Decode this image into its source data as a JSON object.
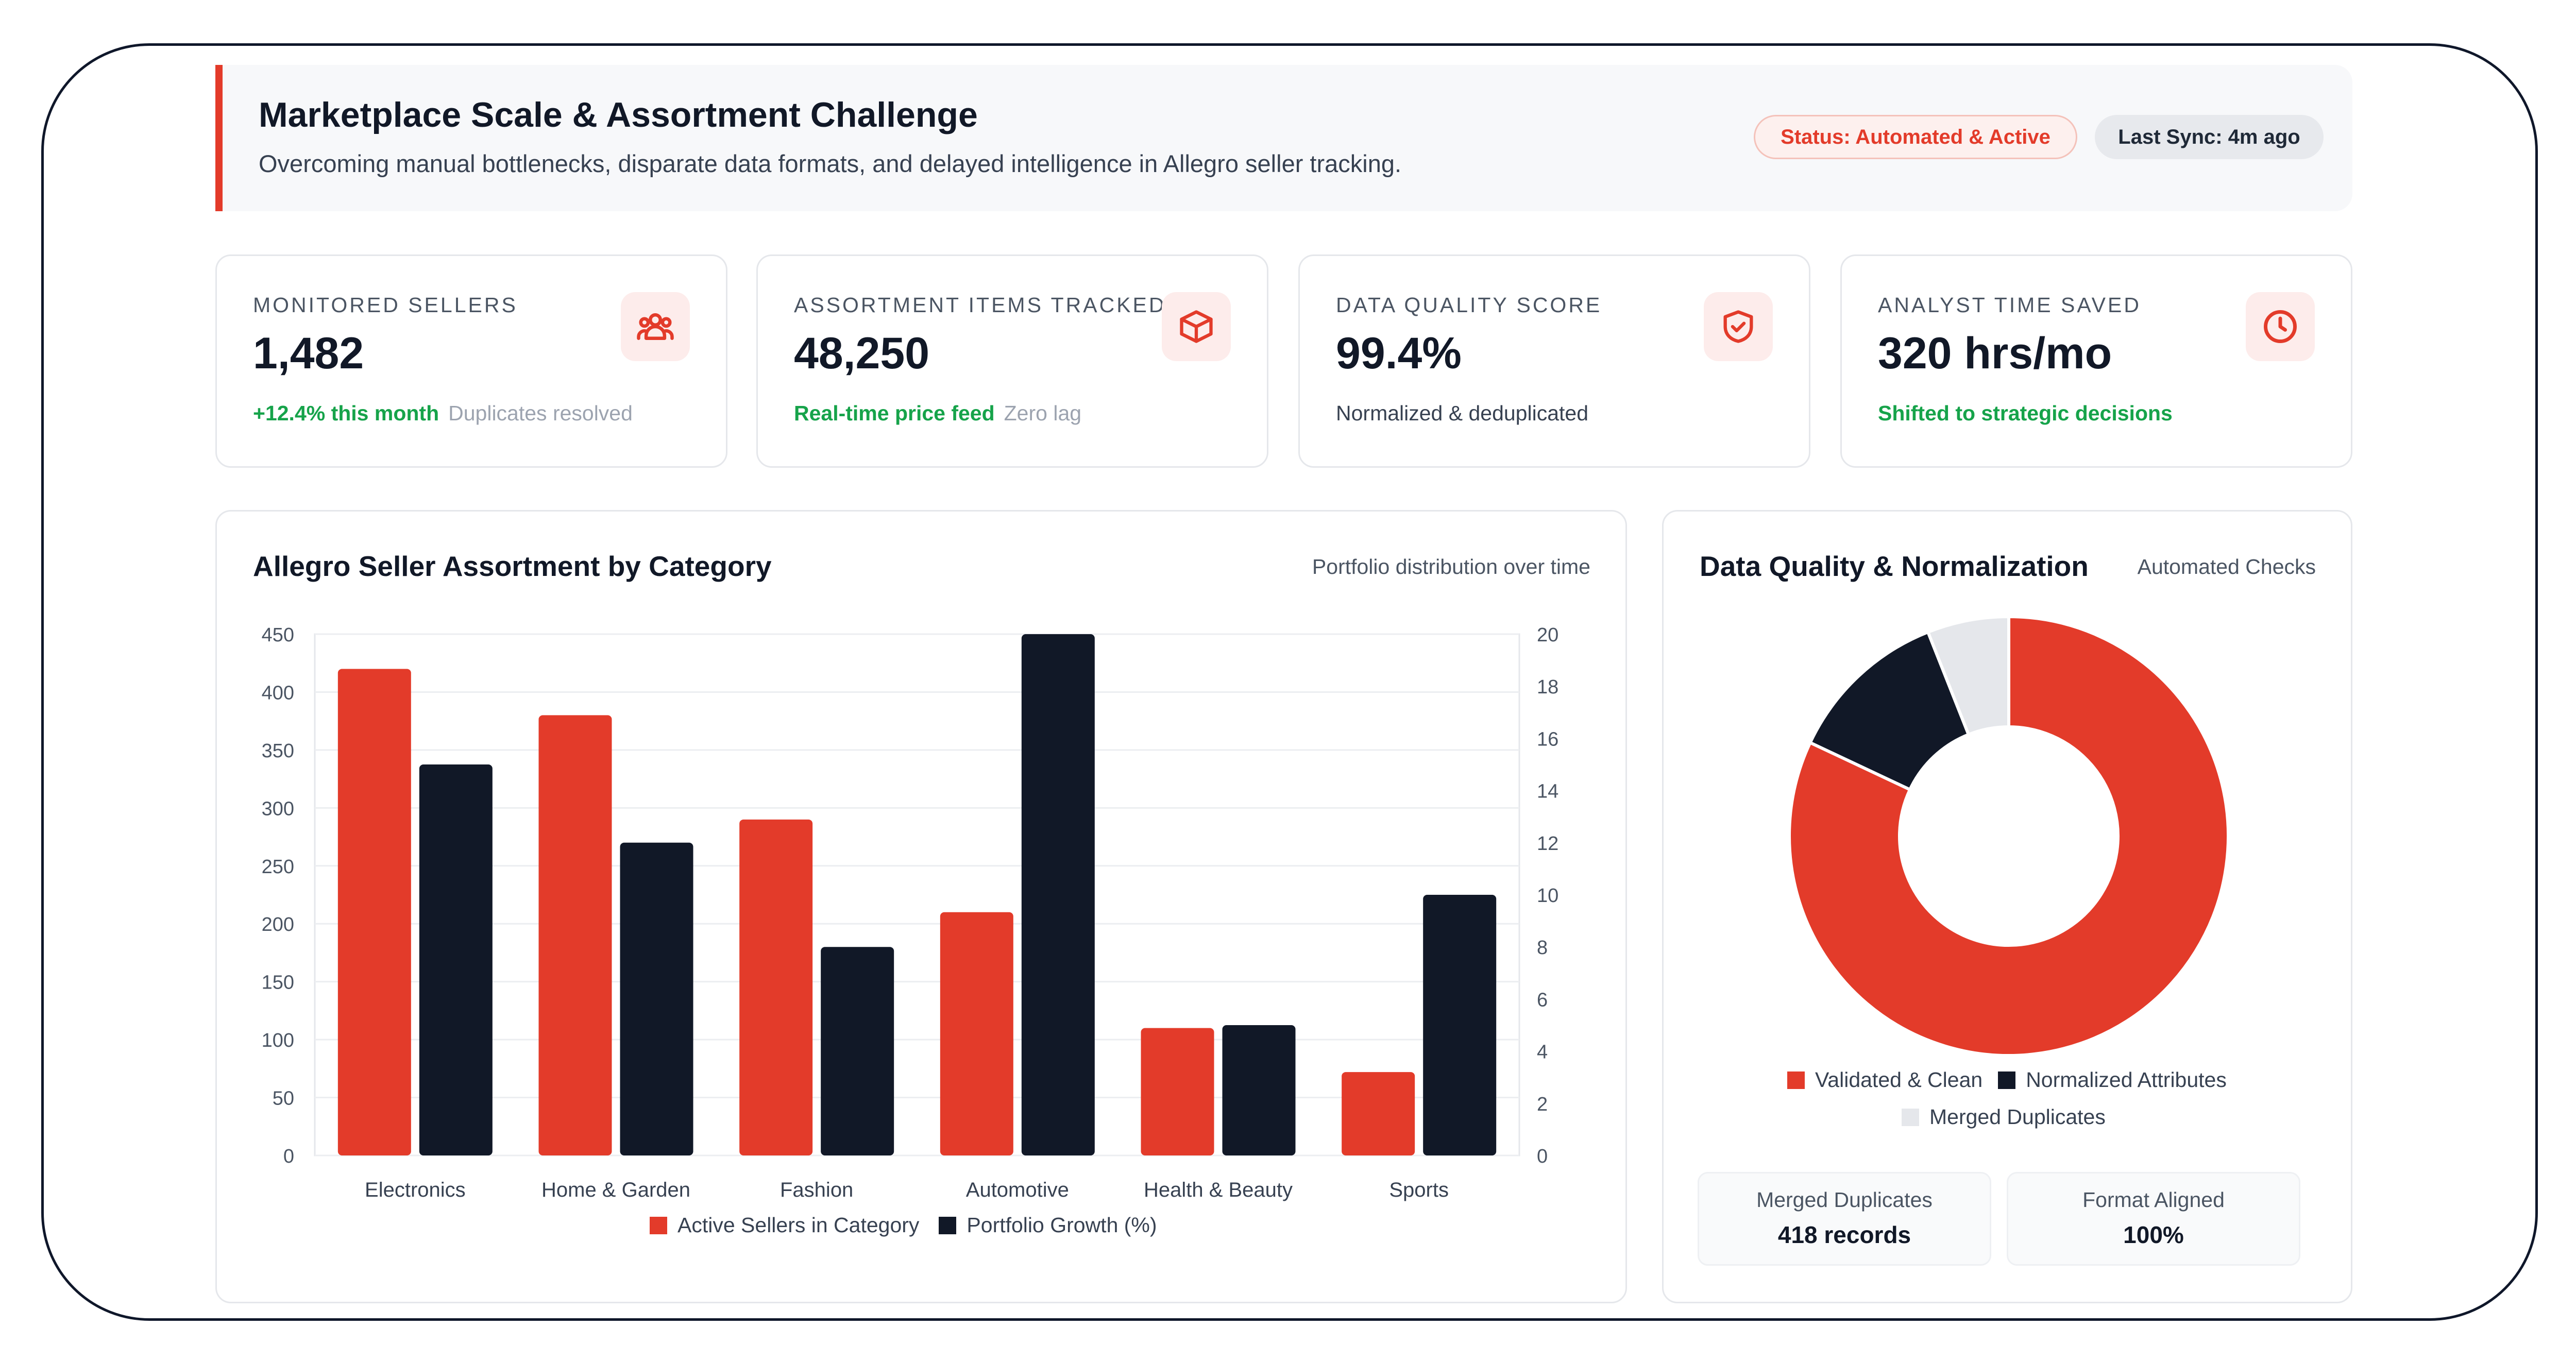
{
  "header": {
    "title": "Marketplace Scale & Assortment Challenge",
    "subtitle": "Overcoming manual bottlenecks, disparate data formats, and delayed intelligence in Allegro seller tracking.",
    "status_badge": "Status: Automated & Active",
    "sync_badge": "Last Sync: 4m ago"
  },
  "kpis": [
    {
      "label": "MONITORED SELLERS",
      "value": "1,482",
      "highlight": "+12.4% this month",
      "note": "Duplicates resolved",
      "icon": "users-icon"
    },
    {
      "label": "ASSORTMENT ITEMS TRACKED",
      "value": "48,250",
      "highlight": "Real-time price feed",
      "note": "Zero lag",
      "icon": "box-icon"
    },
    {
      "label": "DATA QUALITY SCORE",
      "value": "99.4%",
      "highlight": "",
      "note": "Normalized & deduplicated",
      "icon": "shield-check-icon"
    },
    {
      "label": "ANALYST TIME SAVED",
      "value": "320 hrs/mo",
      "highlight": "Shifted to strategic decisions",
      "note": "",
      "icon": "clock-icon"
    }
  ],
  "assortment_card": {
    "title": "Allegro Seller Assortment by Category",
    "subtitle": "Portfolio distribution over time"
  },
  "quality_card": {
    "title": "Data Quality & Normalization",
    "subtitle": "Automated Checks",
    "stats": [
      {
        "label": "Merged Duplicates",
        "value": "418 records"
      },
      {
        "label": "Format Aligned",
        "value": "100%"
      }
    ]
  },
  "colors": {
    "accent": "#e33b2a",
    "dark": "#111827",
    "light": "#e5e7eb",
    "positive": "#16a34a"
  },
  "chart_data": [
    {
      "type": "bar",
      "title": "Allegro Seller Assortment by Category",
      "categories": [
        "Electronics",
        "Home & Garden",
        "Fashion",
        "Automotive",
        "Health & Beauty",
        "Sports"
      ],
      "series": [
        {
          "name": "Active Sellers in Category",
          "values": [
            420,
            380,
            290,
            210,
            110,
            72
          ],
          "axis": "left",
          "color": "#e33b2a"
        },
        {
          "name": "Portfolio Growth (%)",
          "values": [
            15,
            12,
            8,
            20,
            5,
            10
          ],
          "axis": "right",
          "color": "#111827"
        }
      ],
      "ylim_left": [
        0,
        450
      ],
      "yticks_left": [
        0,
        50,
        100,
        150,
        200,
        250,
        300,
        350,
        400,
        450
      ],
      "ylim_right": [
        0,
        20
      ],
      "yticks_right": [
        0,
        2,
        4,
        6,
        8,
        10,
        12,
        14,
        16,
        18,
        20
      ],
      "grid": true,
      "legend": "bottom"
    },
    {
      "type": "pie",
      "title": "Data Quality & Normalization",
      "donut": true,
      "labels": [
        "Validated & Clean",
        "Normalized Attributes",
        "Merged Duplicates"
      ],
      "values": [
        82,
        12,
        6
      ],
      "colors": [
        "#e33b2a",
        "#111827",
        "#e5e7eb"
      ],
      "legend": "bottom"
    }
  ]
}
